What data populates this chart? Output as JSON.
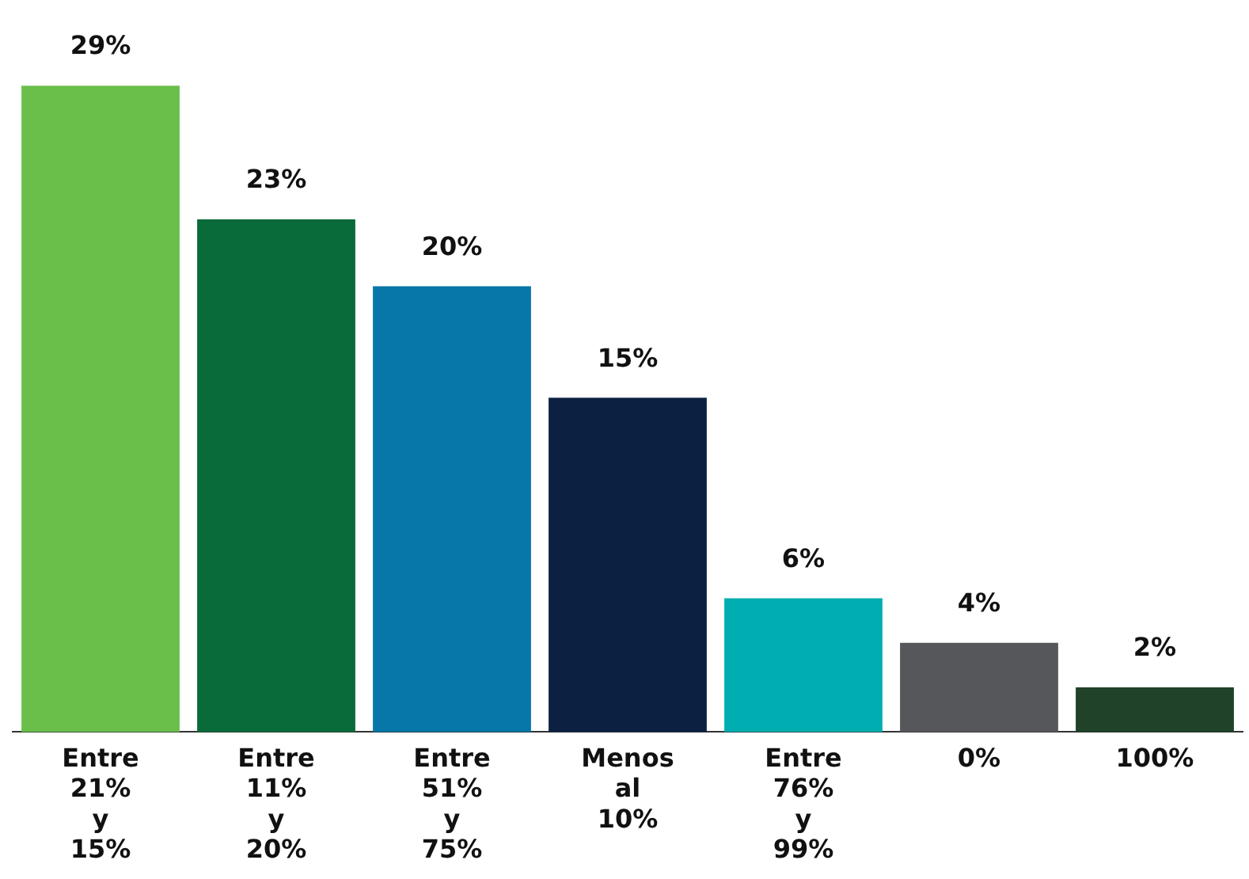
{
  "chart_data": {
    "type": "bar",
    "categories": [
      "Entre 21% y 15%",
      "Entre 11% y 20%",
      "Entre 51% y 75%",
      "Menos al 10%",
      "Entre 76% y 99%",
      "0%",
      "100%"
    ],
    "values": [
      29,
      23,
      20,
      15,
      6,
      4,
      2
    ],
    "value_labels": [
      "29%",
      "23%",
      "20%",
      "15%",
      "6%",
      "4%",
      "2%"
    ],
    "colors": [
      "#6abf4b",
      "#0a6b3a",
      "#0677a8",
      "#0c2142",
      "#00adb0",
      "#55575b",
      "#1f4228"
    ],
    "grid": false,
    "legend": false
  }
}
